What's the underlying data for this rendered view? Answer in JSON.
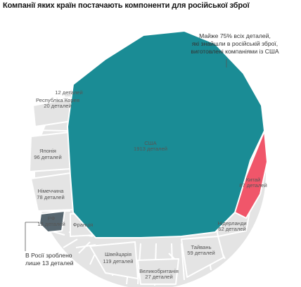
{
  "title": "Компанії яких країн постачають компоненти для російської зброї",
  "annotations": {
    "usa_note": [
      "Майже 75% всіх деталей,",
      "які знайшли в російській зброї,",
      "виготовлені компаніями із США"
    ],
    "russia_note": [
      "В Росії зроблено",
      "лише 13 деталей"
    ]
  },
  "colors": {
    "usa": "#1a8c95",
    "china": "#f0566a",
    "russia": "#57666f",
    "other": "#e4e4e4",
    "stroke": "#ffffff",
    "leader": "#555555"
  },
  "chart_data": {
    "type": "voronoi-treemap",
    "title": "Компанії яких країн постачають компоненти для російської зброї",
    "unit": "деталей",
    "series": [
      {
        "country": "США",
        "value": 1913,
        "label": "1913 деталей",
        "highlight": "usa"
      },
      {
        "country": "Китай",
        "value": 87,
        "label": "87 деталей",
        "highlight": "china"
      },
      {
        "country": "Нідерланди",
        "value": 62,
        "label": "62 деталей"
      },
      {
        "country": "Тайвань",
        "value": 59,
        "label": "59 деталей"
      },
      {
        "country": "Великобританія",
        "value": 27,
        "label": "27 деталей"
      },
      {
        "country": "Швейцарія",
        "value": 119,
        "label": "119 деталей"
      },
      {
        "country": "Франція",
        "value": null,
        "label": ""
      },
      {
        "country": "РФ",
        "value": 13,
        "label": "13 деталей",
        "highlight": "russia"
      },
      {
        "country": "Німеччина",
        "value": 78,
        "label": "78 деталей"
      },
      {
        "country": "Японія",
        "value": 96,
        "label": "96 деталей"
      },
      {
        "country": "Республіка Корея",
        "value": 20,
        "label": "20 деталей"
      },
      {
        "country": "",
        "value": 12,
        "label": "12 деталей"
      }
    ]
  }
}
